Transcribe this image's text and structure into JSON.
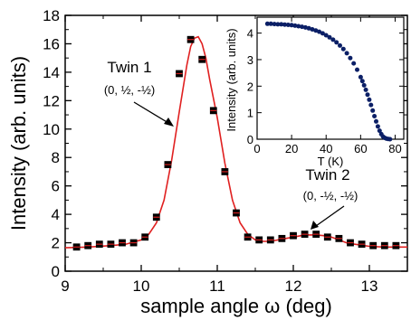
{
  "chart_data": [
    {
      "type": "scatter",
      "xlabel": "sample angle ω (deg)",
      "ylabel": "Intensity (arb. units)",
      "xlim": [
        9,
        13.5
      ],
      "ylim": [
        0,
        18
      ],
      "xticks": [
        "9",
        "10",
        "11",
        "12",
        "13"
      ],
      "yticks": [
        "0",
        "2",
        "4",
        "6",
        "8",
        "10",
        "12",
        "14",
        "16",
        "18"
      ],
      "grid": false,
      "series": [
        {
          "marker": "square",
          "color": "#000000",
          "fill": "#d42020",
          "x": [
            9.15,
            9.3,
            9.45,
            9.6,
            9.75,
            9.9,
            10.05,
            10.2,
            10.35,
            10.5,
            10.65,
            10.8,
            10.95,
            11.1,
            11.25,
            11.4,
            11.55,
            11.7,
            11.85,
            12.0,
            12.15,
            12.3,
            12.45,
            12.6,
            12.75,
            12.9,
            13.05,
            13.2,
            13.35
          ],
          "y": [
            1.7,
            1.8,
            1.9,
            1.9,
            2.0,
            2.0,
            2.4,
            3.8,
            7.5,
            13.9,
            16.3,
            14.9,
            11.3,
            7.0,
            4.1,
            2.4,
            2.2,
            2.2,
            2.3,
            2.5,
            2.6,
            2.6,
            2.4,
            2.3,
            2.0,
            1.9,
            1.8,
            1.8,
            1.8
          ]
        },
        {
          "type": "line",
          "color": "#e02020",
          "x": [
            9.0,
            9.3,
            9.6,
            9.8,
            10.0,
            10.1,
            10.2,
            10.3,
            10.4,
            10.5,
            10.6,
            10.65,
            10.7,
            10.75,
            10.8,
            10.85,
            10.9,
            11.0,
            11.1,
            11.2,
            11.3,
            11.4,
            11.5,
            11.6,
            11.7,
            11.8,
            11.9,
            12.0,
            12.1,
            12.2,
            12.3,
            12.4,
            12.5,
            12.6,
            12.7,
            12.8,
            13.0,
            13.2,
            13.5
          ],
          "y": [
            1.65,
            1.7,
            1.8,
            1.9,
            2.2,
            2.6,
            3.4,
            5.0,
            7.8,
            11.2,
            14.5,
            15.8,
            16.4,
            16.5,
            16.0,
            15.0,
            13.5,
            10.8,
            7.6,
            5.0,
            3.4,
            2.6,
            2.2,
            2.1,
            2.1,
            2.2,
            2.3,
            2.4,
            2.5,
            2.55,
            2.55,
            2.5,
            2.4,
            2.2,
            2.0,
            1.9,
            1.75,
            1.7,
            1.7
          ]
        }
      ],
      "annotations": [
        {
          "text": "Twin 1",
          "sub": "(0, ½, -½)",
          "point": [
            10.6,
            14.2
          ]
        },
        {
          "text": "Twin 2",
          "sub": "(0, -½, -½)",
          "point": [
            12.2,
            2.7
          ]
        }
      ]
    },
    {
      "type": "scatter",
      "inset": true,
      "xlabel": "T (K)",
      "ylabel": "Intensity (arb. units)",
      "xlim": [
        0,
        85
      ],
      "ylim": [
        0,
        4.6
      ],
      "xticks": [
        "0",
        "20",
        "40",
        "60",
        "80"
      ],
      "yticks": [
        "0",
        "1",
        "2",
        "3",
        "4"
      ],
      "series": [
        {
          "marker": "circle",
          "color": "#0b1f66",
          "x": [
            6,
            8,
            10,
            12,
            14,
            16,
            18,
            20,
            22,
            24,
            26,
            28,
            30,
            32,
            34,
            36,
            38,
            40,
            42,
            44,
            46,
            48,
            50,
            52,
            54,
            56,
            58,
            60,
            61,
            62,
            63,
            64,
            65,
            66,
            67,
            68,
            69,
            70,
            71,
            72,
            73,
            74,
            75,
            76,
            77
          ],
          "y": [
            4.35,
            4.35,
            4.34,
            4.33,
            4.33,
            4.32,
            4.31,
            4.3,
            4.28,
            4.26,
            4.24,
            4.21,
            4.18,
            4.14,
            4.1,
            4.05,
            3.99,
            3.92,
            3.84,
            3.75,
            3.65,
            3.53,
            3.4,
            3.24,
            3.06,
            2.86,
            2.62,
            2.34,
            2.19,
            2.03,
            1.86,
            1.68,
            1.49,
            1.29,
            1.08,
            0.87,
            0.67,
            0.48,
            0.32,
            0.19,
            0.1,
            0.05,
            0.02,
            0.01,
            0.0
          ]
        }
      ]
    }
  ],
  "labels": {
    "twin1": "Twin 1",
    "twin1_idx": "(0, ½, -½)",
    "twin2": "Twin 2",
    "twin2_idx": "(0, -½, -½)"
  }
}
